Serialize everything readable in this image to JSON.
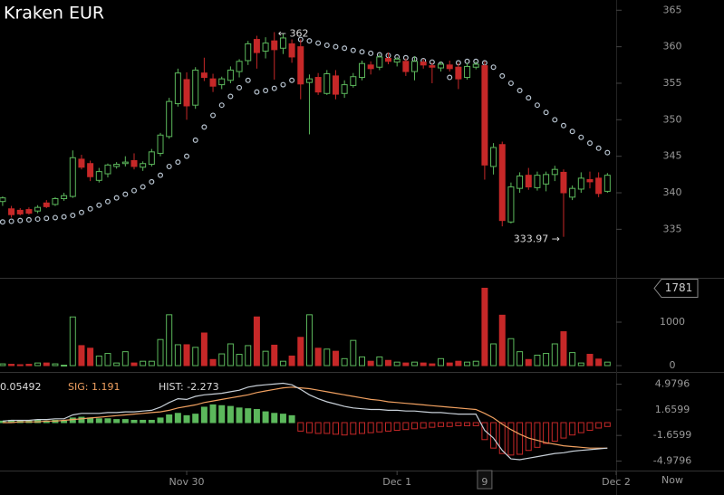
{
  "chart_data": [
    {
      "type": "candlestick",
      "title": "Kraken EUR",
      "open": [
        338.8,
        337.8,
        337.6,
        337.7,
        337.5,
        338.6,
        338.4,
        339.2,
        339.5,
        344.6,
        344.0,
        341.7,
        342.6,
        343.6,
        344.0,
        344.4,
        343.5,
        343.9,
        345.4,
        347.7,
        352.2,
        355.5,
        352.0,
        356.4,
        355.6,
        354.8,
        355.4,
        356.6,
        358.1,
        361.0,
        359.4,
        360.8,
        359.8,
        360.4,
        360.0,
        355.1,
        355.8,
        353.6,
        356.0,
        353.6,
        354.7,
        355.8,
        357.5,
        357.2,
        358.4,
        357.9,
        358.0,
        356.6,
        357.9,
        357.4,
        357.1,
        357.5,
        357.2,
        355.8,
        357.2,
        357.4,
        343.6,
        346.6,
        336.0,
        340.6,
        342.4,
        340.7,
        341.2,
        342.5,
        342.8,
        339.4,
        340.5,
        341.8,
        342.0,
        340.2
      ],
      "high": [
        339.5,
        338.2,
        337.9,
        338.0,
        338.3,
        339.0,
        339.4,
        340.0,
        345.8,
        345.2,
        344.4,
        343.4,
        344.0,
        344.2,
        345.0,
        345.4,
        344.3,
        346.0,
        348.2,
        353.0,
        357.0,
        356.5,
        357.2,
        358.5,
        356.3,
        355.9,
        357.3,
        358.3,
        360.8,
        361.5,
        361.3,
        362,
        361.8,
        361.0,
        361.0,
        356.2,
        356.4,
        356.8,
        356.8,
        355.4,
        356.4,
        358.1,
        358.0,
        359.0,
        359.2,
        358.6,
        358.4,
        358.7,
        358.3,
        357.8,
        358.0,
        358.1,
        357.8,
        357.8,
        358.0,
        358.0,
        346.8,
        347.0,
        341.4,
        342.8,
        343.4,
        342.9,
        342.9,
        343.7,
        343.2,
        341.0,
        342.8,
        342.9,
        342.8,
        342.7
      ],
      "low": [
        338.2,
        336.6,
        336.9,
        337.0,
        337.2,
        337.9,
        338.2,
        338.9,
        339.3,
        343.2,
        341.6,
        341.4,
        342.1,
        343.3,
        343.6,
        343.2,
        343.0,
        343.6,
        345.0,
        347.4,
        351.8,
        350.0,
        351.5,
        355.3,
        353.8,
        354.2,
        355.0,
        355.8,
        357.5,
        357.0,
        358.4,
        355.5,
        359.0,
        357.8,
        352.8,
        348.0,
        353.4,
        353.4,
        352.8,
        353.0,
        354.4,
        355.4,
        356.2,
        356.8,
        357.6,
        357.3,
        356.0,
        355.4,
        357.0,
        355.0,
        356.6,
        356.6,
        354.2,
        355.5,
        356.9,
        341.8,
        342.5,
        335.4,
        335.8,
        340.0,
        340.4,
        340.3,
        340.2,
        341.6,
        333.97,
        339.0,
        340.0,
        340.6,
        339.4,
        340.0
      ],
      "close": [
        339.3,
        337.0,
        337.1,
        337.2,
        338.0,
        338.1,
        339.2,
        339.6,
        344.8,
        343.5,
        342.2,
        342.9,
        343.8,
        343.9,
        344.2,
        343.6,
        344.0,
        345.6,
        347.9,
        352.5,
        356.4,
        351.9,
        356.8,
        355.8,
        354.6,
        355.6,
        356.8,
        358.0,
        360.4,
        359.2,
        360.5,
        359.6,
        361.2,
        358.6,
        354.9,
        355.6,
        353.8,
        356.3,
        353.5,
        354.8,
        355.9,
        357.7,
        357.0,
        358.6,
        358.0,
        358.3,
        356.6,
        358.0,
        357.5,
        357.2,
        357.6,
        357.0,
        355.6,
        357.3,
        357.6,
        343.8,
        346.2,
        336.2,
        340.8,
        342.3,
        340.8,
        342.4,
        342.5,
        343.2,
        340.0,
        340.6,
        342.0,
        341.5,
        339.9,
        342.4
      ],
      "sar": [
        336.0,
        336.1,
        336.2,
        336.3,
        336.4,
        336.5,
        336.6,
        336.7,
        336.9,
        337.3,
        337.8,
        338.3,
        338.8,
        339.3,
        339.8,
        340.3,
        340.8,
        341.5,
        342.4,
        343.6,
        344.2,
        345.0,
        347.2,
        349.0,
        350.6,
        352.0,
        353.2,
        354.4,
        355.4,
        353.8,
        354.0,
        354.3,
        354.8,
        355.4,
        361.0,
        360.8,
        360.5,
        360.2,
        360.0,
        359.8,
        359.5,
        359.3,
        359.1,
        358.9,
        358.8,
        358.6,
        358.5,
        358.3,
        358.1,
        357.9,
        357.6,
        355.8,
        357.8,
        358.0,
        358.0,
        357.8,
        357.2,
        356.0,
        355.0,
        354.0,
        353.0,
        352.0,
        351.0,
        350.0,
        349.2,
        348.4,
        347.6,
        346.8,
        346.1,
        345.5
      ],
      "up_color": "#5cb85c",
      "down_color": "#c62828",
      "sar_color": "#b8c4d0",
      "annotations": [
        "← 362",
        "333.97 →"
      ],
      "ylim": [
        328.6,
        366.4
      ],
      "yticks": [
        335,
        340,
        345,
        350,
        355,
        360,
        365
      ]
    },
    {
      "type": "bar",
      "values": [
        40,
        30,
        20,
        30,
        60,
        60,
        40,
        10,
        1120,
        460,
        400,
        220,
        280,
        60,
        320,
        60,
        100,
        100,
        600,
        1170,
        480,
        480,
        420,
        750,
        140,
        270,
        500,
        260,
        460,
        1120,
        330,
        470,
        100,
        220,
        650,
        1170,
        400,
        380,
        330,
        160,
        580,
        200,
        100,
        200,
        120,
        80,
        60,
        80,
        60,
        40,
        160,
        60,
        100,
        80,
        100,
        1781,
        500,
        1160,
        620,
        320,
        140,
        240,
        280,
        500,
        780,
        300,
        60,
        260,
        150,
        80
      ],
      "marker_value": 1781,
      "ylim": [
        -125,
        2000
      ],
      "yticks": [
        0,
        1000
      ]
    },
    {
      "type": "macd",
      "macd": [
        0.2,
        0.3,
        0.3,
        0.3,
        0.4,
        0.4,
        0.5,
        0.5,
        1.0,
        1.2,
        1.2,
        1.2,
        1.3,
        1.3,
        1.4,
        1.4,
        1.5,
        1.6,
        2.0,
        2.6,
        3.1,
        3.0,
        3.4,
        3.6,
        3.7,
        3.8,
        4.0,
        4.2,
        4.6,
        4.8,
        4.9,
        5.0,
        5.1,
        4.9,
        4.3,
        3.6,
        3.1,
        2.7,
        2.4,
        2.1,
        1.9,
        1.8,
        1.7,
        1.7,
        1.6,
        1.6,
        1.5,
        1.5,
        1.4,
        1.3,
        1.3,
        1.2,
        1.1,
        1.1,
        1.1,
        -1.0,
        -2.0,
        -3.6,
        -4.7,
        -4.8,
        -4.6,
        -4.4,
        -4.2,
        -4.0,
        -3.9,
        -3.7,
        -3.6,
        -3.5,
        -3.4,
        -3.3
      ],
      "signal": [
        0.0,
        0.0,
        0.1,
        0.1,
        0.1,
        0.2,
        0.2,
        0.3,
        0.4,
        0.5,
        0.6,
        0.7,
        0.8,
        0.9,
        1.0,
        1.1,
        1.2,
        1.3,
        1.4,
        1.6,
        1.9,
        2.1,
        2.3,
        2.6,
        2.8,
        3.0,
        3.2,
        3.4,
        3.6,
        3.9,
        4.1,
        4.3,
        4.5,
        4.6,
        4.5,
        4.4,
        4.2,
        4.0,
        3.8,
        3.6,
        3.4,
        3.2,
        3.0,
        2.9,
        2.7,
        2.6,
        2.5,
        2.4,
        2.3,
        2.2,
        2.1,
        2.0,
        1.9,
        1.8,
        1.7,
        1.2,
        0.6,
        -0.2,
        -0.9,
        -1.5,
        -2.0,
        -2.3,
        -2.6,
        -2.8,
        -3.0,
        -3.1,
        -3.2,
        -3.3,
        -3.3,
        -3.3
      ],
      "hist": [
        0.2,
        0.3,
        0.2,
        0.2,
        0.3,
        0.2,
        0.3,
        0.2,
        0.6,
        0.7,
        0.6,
        0.5,
        0.5,
        0.4,
        0.4,
        0.3,
        0.3,
        0.3,
        0.6,
        1.0,
        1.2,
        0.9,
        1.1,
        2.0,
        2.3,
        2.2,
        2.1,
        1.9,
        1.8,
        1.7,
        1.4,
        1.2,
        1.1,
        0.9,
        -1.1,
        -1.3,
        -1.4,
        -1.4,
        -1.5,
        -1.6,
        -1.5,
        -1.4,
        -1.3,
        -1.2,
        -1.1,
        -1.0,
        -0.9,
        -0.8,
        -0.7,
        -0.6,
        -0.5,
        -0.5,
        -0.4,
        -0.4,
        -0.4,
        -2.2,
        -3.3,
        -4.0,
        -4.2,
        -4.1,
        -3.6,
        -3.2,
        -2.7,
        -2.4,
        -2.0,
        -1.6,
        -1.3,
        -1.0,
        -0.7,
        -0.5
      ],
      "macd_color": "#c8d0d8",
      "signal_color": "#f0a060",
      "readout": [
        "0.05492",
        "SIG: 1.191",
        "HIST: -2.273"
      ],
      "ylim": [
        -6.21,
        6.45
      ],
      "yticks": [
        4.9796,
        1.6599,
        -1.6599,
        -4.9796
      ],
      "xlim": [
        -0.3,
        70.0
      ],
      "xticks": [
        {
          "value": 21,
          "label": "Nov 30"
        },
        {
          "value": 45,
          "label": "Dec 1"
        },
        {
          "value": 55,
          "label": "9"
        },
        {
          "value": 70,
          "label": "Dec 2"
        }
      ],
      "x_end_label": "Now"
    }
  ]
}
